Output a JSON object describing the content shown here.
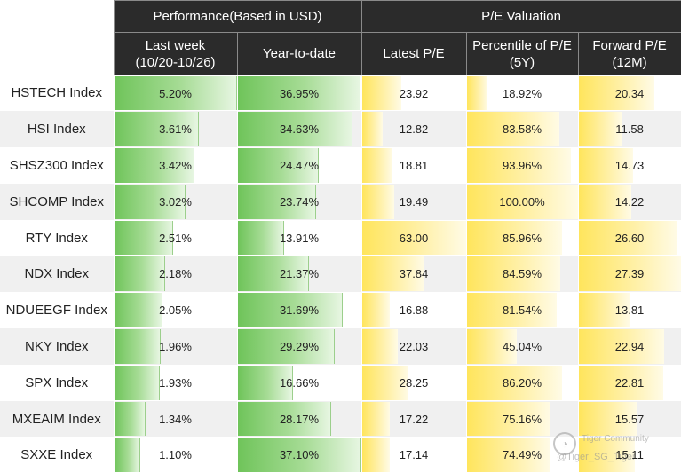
{
  "header": {
    "performance": "Performance(Based in USD)",
    "pe_valuation": "P/E Valuation",
    "last_week": "Last week",
    "last_week_range": "(10/20-10/26)",
    "ytd": "Year-to-date",
    "latest_pe": "Latest P/E",
    "pe_percentile": "Percentile of P/E",
    "pe_percentile_period": "(5Y)",
    "forward_pe": "Forward P/E",
    "forward_pe_period": "(12M)"
  },
  "rows": [
    {
      "index": "HSTECH Index",
      "last_week": "5.20%",
      "ytd": "36.95%",
      "latest_pe": "23.92",
      "percentile": "18.92%",
      "forward_pe": "20.34"
    },
    {
      "index": "HSI Index",
      "last_week": "3.61%",
      "ytd": "34.63%",
      "latest_pe": "12.82",
      "percentile": "83.58%",
      "forward_pe": "11.58"
    },
    {
      "index": "SHSZ300 Index",
      "last_week": "3.42%",
      "ytd": "24.47%",
      "latest_pe": "18.81",
      "percentile": "93.96%",
      "forward_pe": "14.73"
    },
    {
      "index": "SHCOMP Index",
      "last_week": "3.02%",
      "ytd": "23.74%",
      "latest_pe": "19.49",
      "percentile": "100.00%",
      "forward_pe": "14.22"
    },
    {
      "index": "RTY Index",
      "last_week": "2.51%",
      "ytd": "13.91%",
      "latest_pe": "63.00",
      "percentile": "85.96%",
      "forward_pe": "26.60"
    },
    {
      "index": "NDX Index",
      "last_week": "2.18%",
      "ytd": "21.37%",
      "latest_pe": "37.84",
      "percentile": "84.59%",
      "forward_pe": "27.39"
    },
    {
      "index": "NDUEEGF Index",
      "last_week": "2.05%",
      "ytd": "31.69%",
      "latest_pe": "16.88",
      "percentile": "81.54%",
      "forward_pe": "13.81"
    },
    {
      "index": "NKY Index",
      "last_week": "1.96%",
      "ytd": "29.29%",
      "latest_pe": "22.03",
      "percentile": "45.04%",
      "forward_pe": "22.94"
    },
    {
      "index": "SPX Index",
      "last_week": "1.93%",
      "ytd": "16.66%",
      "latest_pe": "28.25",
      "percentile": "86.20%",
      "forward_pe": "22.81"
    },
    {
      "index": "MXEAIM Index",
      "last_week": "1.34%",
      "ytd": "28.17%",
      "latest_pe": "17.22",
      "percentile": "75.16%",
      "forward_pe": "15.57"
    },
    {
      "index": "SXXE Index",
      "last_week": "1.10%",
      "ytd": "37.10%",
      "latest_pe": "17.14",
      "percentile": "74.49%",
      "forward_pe": "15.11"
    }
  ],
  "watermark": {
    "name": "Tiger Community",
    "handle": "@Tiger_SG_Tiger"
  },
  "colors": {
    "header_bg": "#2b2b2b",
    "performance_bar": "#6fc45a",
    "valuation_bar": "#ffe55c",
    "alt_row": "#f0f0f0"
  }
}
